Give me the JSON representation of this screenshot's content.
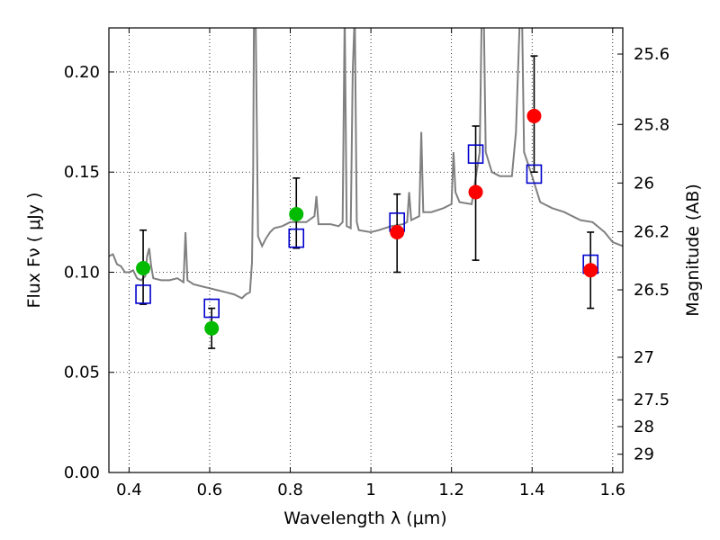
{
  "chart_data": {
    "type": "scatter",
    "title": "",
    "xlabel": "Wavelength  λ (μm)",
    "ylabel": "Flux  Fν  ( μJy )",
    "ylabel_right": "Magnitude (AB)",
    "xlim": [
      0.35,
      1.625
    ],
    "ylim": [
      0.0,
      0.222
    ],
    "grid": true,
    "x_ticks": [
      {
        "value": 0.4,
        "label": "0.4"
      },
      {
        "value": 0.6,
        "label": "0.6"
      },
      {
        "value": 0.8,
        "label": "0.8"
      },
      {
        "value": 1.0,
        "label": "1"
      },
      {
        "value": 1.2,
        "label": "1.2"
      },
      {
        "value": 1.4,
        "label": "1.4"
      },
      {
        "value": 1.6,
        "label": "1.6"
      }
    ],
    "y_ticks": [
      {
        "value": 0.0,
        "label": "0.00"
      },
      {
        "value": 0.05,
        "label": "0.05"
      },
      {
        "value": 0.1,
        "label": "0.10"
      },
      {
        "value": 0.15,
        "label": "0.15"
      },
      {
        "value": 0.2,
        "label": "0.20"
      }
    ],
    "right_ticks": [
      {
        "mag": 25.6,
        "label": "25.6"
      },
      {
        "mag": 25.8,
        "label": "25.8"
      },
      {
        "mag": 26.0,
        "label": "26"
      },
      {
        "mag": 26.2,
        "label": "26.2"
      },
      {
        "mag": 26.5,
        "label": "26.5"
      },
      {
        "mag": 27.0,
        "label": "27"
      },
      {
        "mag": 27.5,
        "label": "27.5"
      },
      {
        "mag": 28.0,
        "label": "28"
      },
      {
        "mag": 29.0,
        "label": "29"
      }
    ],
    "series": [
      {
        "kind": "model-spectrum",
        "color": "#808080",
        "points": [
          [
            0.35,
            0.108
          ],
          [
            0.36,
            0.109
          ],
          [
            0.37,
            0.104
          ],
          [
            0.38,
            0.103
          ],
          [
            0.39,
            0.1
          ],
          [
            0.4,
            0.1
          ],
          [
            0.41,
            0.101
          ],
          [
            0.42,
            0.097
          ],
          [
            0.43,
            0.096
          ],
          [
            0.44,
            0.098
          ],
          [
            0.445,
            0.108
          ],
          [
            0.45,
            0.112
          ],
          [
            0.455,
            0.103
          ],
          [
            0.46,
            0.097
          ],
          [
            0.48,
            0.096
          ],
          [
            0.5,
            0.096
          ],
          [
            0.52,
            0.097
          ],
          [
            0.535,
            0.095
          ],
          [
            0.54,
            0.12
          ],
          [
            0.545,
            0.096
          ],
          [
            0.56,
            0.094
          ],
          [
            0.58,
            0.093
          ],
          [
            0.6,
            0.092
          ],
          [
            0.62,
            0.091
          ],
          [
            0.64,
            0.09
          ],
          [
            0.66,
            0.089
          ],
          [
            0.68,
            0.087
          ],
          [
            0.69,
            0.089
          ],
          [
            0.7,
            0.09
          ],
          [
            0.705,
            0.105
          ],
          [
            0.708,
            0.15
          ],
          [
            0.71,
            0.23
          ],
          [
            0.714,
            0.23
          ],
          [
            0.72,
            0.118
          ],
          [
            0.73,
            0.113
          ],
          [
            0.74,
            0.117
          ],
          [
            0.75,
            0.12
          ],
          [
            0.76,
            0.122
          ],
          [
            0.78,
            0.123
          ],
          [
            0.8,
            0.125
          ],
          [
            0.82,
            0.125
          ],
          [
            0.84,
            0.125
          ],
          [
            0.86,
            0.128
          ],
          [
            0.865,
            0.138
          ],
          [
            0.87,
            0.124
          ],
          [
            0.88,
            0.124
          ],
          [
            0.9,
            0.124
          ],
          [
            0.92,
            0.123
          ],
          [
            0.93,
            0.125
          ],
          [
            0.935,
            0.23
          ],
          [
            0.94,
            0.123
          ],
          [
            0.95,
            0.122
          ],
          [
            0.955,
            0.2
          ],
          [
            0.96,
            0.23
          ],
          [
            0.965,
            0.125
          ],
          [
            0.97,
            0.121
          ],
          [
            1.0,
            0.12
          ],
          [
            1.02,
            0.121
          ],
          [
            1.05,
            0.123
          ],
          [
            1.08,
            0.124
          ],
          [
            1.09,
            0.125
          ],
          [
            1.095,
            0.14
          ],
          [
            1.1,
            0.126
          ],
          [
            1.12,
            0.128
          ],
          [
            1.125,
            0.17
          ],
          [
            1.13,
            0.13
          ],
          [
            1.15,
            0.13
          ],
          [
            1.18,
            0.132
          ],
          [
            1.2,
            0.134
          ],
          [
            1.205,
            0.16
          ],
          [
            1.21,
            0.14
          ],
          [
            1.22,
            0.135
          ],
          [
            1.25,
            0.134
          ],
          [
            1.27,
            0.16
          ],
          [
            1.275,
            0.23
          ],
          [
            1.28,
            0.23
          ],
          [
            1.285,
            0.16
          ],
          [
            1.3,
            0.15
          ],
          [
            1.32,
            0.148
          ],
          [
            1.35,
            0.148
          ],
          [
            1.36,
            0.17
          ],
          [
            1.37,
            0.23
          ],
          [
            1.375,
            0.23
          ],
          [
            1.38,
            0.16
          ],
          [
            1.4,
            0.148
          ],
          [
            1.42,
            0.135
          ],
          [
            1.45,
            0.132
          ],
          [
            1.48,
            0.13
          ],
          [
            1.5,
            0.128
          ],
          [
            1.52,
            0.126
          ],
          [
            1.55,
            0.125
          ],
          [
            1.58,
            0.12
          ],
          [
            1.6,
            0.115
          ],
          [
            1.625,
            0.113
          ]
        ]
      },
      {
        "kind": "observed-optical",
        "color": "#00bb00",
        "points": [
          {
            "x": 0.435,
            "y": 0.102,
            "lo": 0.084,
            "hi": 0.121
          },
          {
            "x": 0.605,
            "y": 0.072,
            "lo": 0.062,
            "hi": 0.082
          },
          {
            "x": 0.815,
            "y": 0.129,
            "lo": 0.112,
            "hi": 0.147
          }
        ]
      },
      {
        "kind": "observed-nir",
        "color": "#ff0000",
        "points": [
          {
            "x": 1.065,
            "y": 0.12,
            "lo": 0.1,
            "hi": 0.139
          },
          {
            "x": 1.26,
            "y": 0.14,
            "lo": 0.106,
            "hi": 0.173
          },
          {
            "x": 1.405,
            "y": 0.178,
            "lo": 0.15,
            "hi": 0.208
          },
          {
            "x": 1.545,
            "y": 0.101,
            "lo": 0.082,
            "hi": 0.12
          }
        ]
      },
      {
        "kind": "model-photometry",
        "color": "#0000cc",
        "points": [
          {
            "x": 0.435,
            "y": 0.089
          },
          {
            "x": 0.605,
            "y": 0.082
          },
          {
            "x": 0.815,
            "y": 0.117
          },
          {
            "x": 1.065,
            "y": 0.125
          },
          {
            "x": 1.26,
            "y": 0.159
          },
          {
            "x": 1.405,
            "y": 0.149
          },
          {
            "x": 1.545,
            "y": 0.104
          }
        ]
      }
    ]
  }
}
